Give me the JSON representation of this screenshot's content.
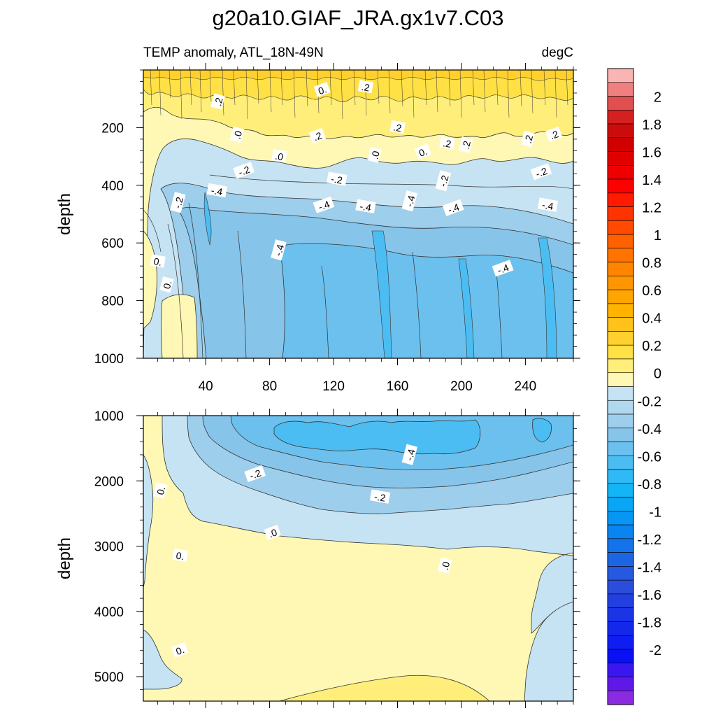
{
  "chart_data": {
    "type": "heatmap",
    "title": "g20a10.GIAF_JRA.gx1v7.C03",
    "subtitle_left": "TEMP anomaly, ATL_18N-49N",
    "subtitle_right": "degC",
    "upper_panel": {
      "ylabel": "depth",
      "y_range": [
        0,
        1000
      ],
      "y_inverted": true,
      "y_ticks": [
        200,
        400,
        600,
        800,
        1000
      ],
      "x_range": [
        1,
        270
      ],
      "x_ticks": [
        40,
        80,
        120,
        160,
        200,
        240
      ]
    },
    "lower_panel": {
      "ylabel": "depth",
      "y_range": [
        1000,
        5375
      ],
      "y_inverted": true,
      "y_ticks": [
        1000,
        2000,
        3000,
        4000,
        5000
      ],
      "x_range": [
        1,
        270
      ]
    },
    "contour_labels_upper": [
      {
        "text": ".2",
        "x": 48,
        "y": 110
      },
      {
        "text": "0.",
        "x": 113,
        "y": 70
      },
      {
        "text": ".2",
        "x": 140,
        "y": 60
      },
      {
        "text": ".0",
        "x": 60,
        "y": 225
      },
      {
        "text": ".2",
        "x": 110,
        "y": 230
      },
      {
        "text": ".2",
        "x": 160,
        "y": 200
      },
      {
        "text": ".2",
        "x": 242,
        "y": 240
      },
      {
        "text": ".2",
        "x": 258,
        "y": 225
      },
      {
        "text": ".2",
        "x": 191,
        "y": 255
      },
      {
        "text": ".2",
        "x": 203,
        "y": 260
      },
      {
        "text": "0.",
        "x": 176,
        "y": 285
      },
      {
        "text": ".0",
        "x": 86,
        "y": 300
      },
      {
        "text": ".0",
        "x": 146,
        "y": 295
      },
      {
        "text": "-.2",
        "x": 64,
        "y": 350
      },
      {
        "text": "-.2",
        "x": 122,
        "y": 380
      },
      {
        "text": "-.2",
        "x": 189,
        "y": 385
      },
      {
        "text": "-.2",
        "x": 250,
        "y": 355
      },
      {
        "text": "-.4",
        "x": 47,
        "y": 420
      },
      {
        "text": "-.2",
        "x": 23,
        "y": 460
      },
      {
        "text": "-.4",
        "x": 114,
        "y": 470
      },
      {
        "text": "-.4",
        "x": 140,
        "y": 475
      },
      {
        "text": "-.4",
        "x": 168,
        "y": 455
      },
      {
        "text": "-.4",
        "x": 195,
        "y": 480
      },
      {
        "text": "-.4",
        "x": 254,
        "y": 470
      },
      {
        "text": "-.4",
        "x": 86,
        "y": 625
      },
      {
        "text": "-.4",
        "x": 226,
        "y": 690
      },
      {
        "text": "0.",
        "x": 10,
        "y": 665
      },
      {
        "text": "0.",
        "x": 16,
        "y": 745
      }
    ],
    "contour_labels_lower": [
      {
        "text": "-.4",
        "x": 168,
        "y": 1600
      },
      {
        "text": "-.2",
        "x": 71,
        "y": 1900
      },
      {
        "text": "-.2",
        "x": 149,
        "y": 2250
      },
      {
        "text": "0.",
        "x": 12,
        "y": 2150
      },
      {
        "text": ".0",
        "x": 82,
        "y": 2800
      },
      {
        "text": "0.",
        "x": 24,
        "y": 3150
      },
      {
        "text": ".0",
        "x": 190,
        "y": 3300
      },
      {
        "text": "0.",
        "x": 24,
        "y": 4600
      }
    ],
    "colorbar": {
      "min": -2.1,
      "max": 2.2,
      "step": 0.1,
      "labels": [
        "2",
        "1.8",
        "1.6",
        "1.4",
        "1.2",
        "1",
        "0.8",
        "0.6",
        "0.4",
        "0.2",
        "0",
        "-0.2",
        "-0.4",
        "-0.6",
        "-0.8",
        "-1",
        "-1.2",
        "-1.4",
        "-1.6",
        "-1.8",
        "-2"
      ],
      "label_values": [
        2.0,
        1.8,
        1.6,
        1.4,
        1.2,
        1.0,
        0.8,
        0.6,
        0.4,
        0.2,
        0.0,
        -0.2,
        -0.4,
        -0.6,
        -0.8,
        -1.0,
        -1.2,
        -1.4,
        -1.6,
        -1.8,
        -2.0
      ],
      "colors_top_to_bottom": [
        "#fbb4b4",
        "#f08080",
        "#e05050",
        "#d42020",
        "#cc0c0c",
        "#d00000",
        "#e00000",
        "#ee0000",
        "#ff0000",
        "#ff1a00",
        "#ff3300",
        "#ff4a00",
        "#ff6000",
        "#ff7300",
        "#ff8500",
        "#ff9500",
        "#ffa500",
        "#ffb300",
        "#ffc21a",
        "#ffd02e",
        "#ffe045",
        "#ffef7a",
        "#fff8b4",
        "#c5e3f3",
        "#b0d8ef",
        "#9dceec",
        "#87c4e9",
        "#6cc0ee",
        "#4cbdf2",
        "#30baf5",
        "#14b5f5",
        "#08a6f4",
        "#0896f4",
        "#0a84f0",
        "#1473ea",
        "#1c66e4",
        "#2559df",
        "#2a4ddb",
        "#2240e0",
        "#1b34e6",
        "#1428ec",
        "#0f1cf2",
        "#0a10f6",
        "#3a16f0",
        "#6018e8",
        "#8a2be2"
      ]
    }
  }
}
